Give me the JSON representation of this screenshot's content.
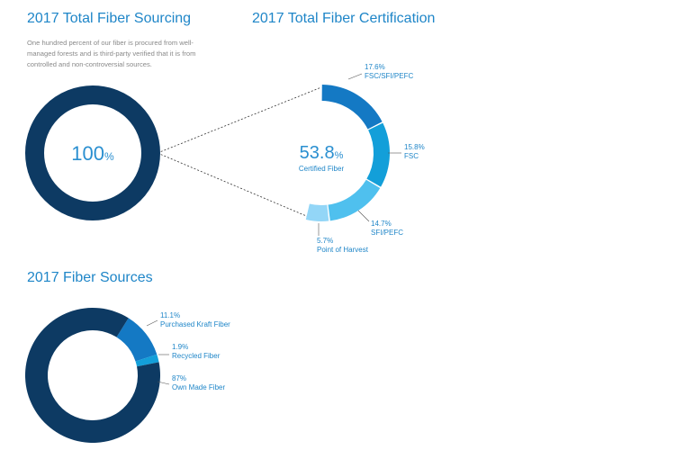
{
  "colors": {
    "dark_navy": "#0d3a63",
    "blue": "#1479c4",
    "mid_blue": "#139fd9",
    "light_blue": "#4fc0ee",
    "pale_blue": "#93d6f7",
    "title_blue": "#1f86c8"
  },
  "sourcing": {
    "title": "2017 Total Fiber Sourcing",
    "description": "One hundred percent of our fiber is procured from well-managed forests and is third-party verified that it is from controlled and non-controversial sources.",
    "center_value": "100",
    "center_unit": "%"
  },
  "certification": {
    "title": "2017 Total Fiber Certification",
    "center_value": "53.8",
    "center_unit": "%",
    "center_label": "Certified Fiber"
  },
  "sources": {
    "title": "2017 Fiber Sources"
  },
  "chart_data": [
    {
      "type": "pie",
      "title": "2017 Total Fiber Sourcing",
      "categories": [
        ""
      ],
      "values": [
        100
      ],
      "units": "%"
    },
    {
      "type": "pie",
      "title": "2017 Total Fiber Certification",
      "total": 53.8,
      "categories": [
        "FSC/SFI/PEFC",
        "FSC",
        "SFI/PEFC",
        "Point of Harvest"
      ],
      "values": [
        17.6,
        15.8,
        14.7,
        5.7
      ],
      "value_labels": [
        "17.6%",
        "15.8%",
        "14.7%",
        "5.7%"
      ],
      "units": "%"
    },
    {
      "type": "pie",
      "title": "2017 Fiber Sources",
      "categories": [
        "Purchased Kraft Fiber",
        "Recycled Fiber",
        "Own Made Fiber"
      ],
      "values": [
        11.1,
        1.9,
        87
      ],
      "value_labels": [
        "11.1%",
        "1.9%",
        "87%"
      ],
      "units": "%"
    }
  ]
}
